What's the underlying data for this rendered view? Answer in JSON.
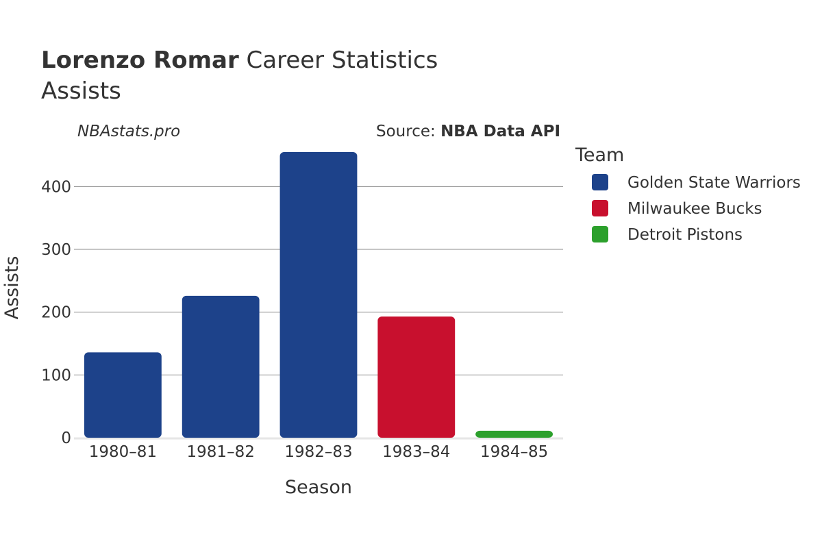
{
  "header": {
    "player_name": "Lorenzo Romar",
    "title_suffix": " Career Statistics",
    "subtitle": "Assists"
  },
  "credits": {
    "site": "NBAstats.pro",
    "source_prefix": "Source: ",
    "source_name": "NBA Data API"
  },
  "legend": {
    "title": "Team",
    "items": [
      {
        "label": "Golden State Warriors",
        "color": "#1d428a"
      },
      {
        "label": "Milwaukee Bucks",
        "color": "#c8102e"
      },
      {
        "label": "Detroit Pistons",
        "color": "#2ca02c"
      }
    ]
  },
  "chart_data": {
    "type": "bar",
    "title": "Lorenzo Romar Career Statistics",
    "subtitle": "Assists",
    "xlabel": "Season",
    "ylabel": "Assists",
    "categories": [
      "1980–81",
      "1981–82",
      "1982–83",
      "1983–84",
      "1984–85"
    ],
    "values": [
      136,
      226,
      455,
      193,
      11
    ],
    "teams": [
      "Golden State Warriors",
      "Golden State Warriors",
      "Golden State Warriors",
      "Milwaukee Bucks",
      "Detroit Pistons"
    ],
    "ylim": [
      0,
      455
    ],
    "yticks": [
      0,
      100,
      200,
      300,
      400
    ],
    "grid": true,
    "legend_position": "right"
  }
}
